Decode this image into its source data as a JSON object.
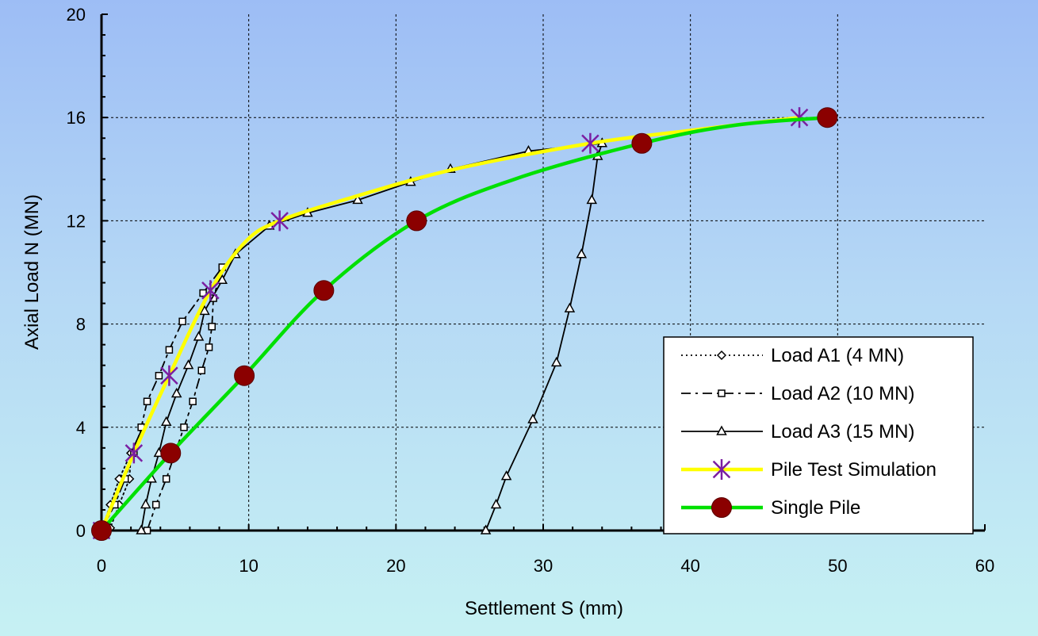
{
  "chart_data": {
    "type": "line",
    "title": "",
    "xlabel": "Settlement S (mm)",
    "ylabel": "Axial Load N (MN)",
    "xlim": [
      0,
      60
    ],
    "ylim": [
      0,
      20
    ],
    "xticks": [
      "0",
      "10",
      "20",
      "30",
      "40",
      "50",
      "60"
    ],
    "yticks": [
      "0",
      "4",
      "8",
      "12",
      "16",
      "20"
    ],
    "grid": true,
    "legend_position": "bottom-right",
    "series": [
      {
        "name": "Load A1 (4 MN)",
        "color": "#000000",
        "marker": "diamond",
        "line": "dotted",
        "points": [
          [
            0,
            0
          ],
          [
            0.6,
            1
          ],
          [
            1.2,
            2
          ],
          [
            2.0,
            3
          ],
          [
            2.8,
            4
          ],
          [
            2.0,
            3
          ],
          [
            1.9,
            2
          ],
          [
            1.2,
            1
          ],
          [
            0.6,
            0.1
          ]
        ]
      },
      {
        "name": "Load A2 (10 MN)",
        "color": "#000000",
        "marker": "square",
        "line": "dashed",
        "points": [
          [
            0,
            0
          ],
          [
            0.9,
            1
          ],
          [
            1.6,
            2
          ],
          [
            2.2,
            3
          ],
          [
            2.7,
            4
          ],
          [
            3.1,
            5
          ],
          [
            3.9,
            6
          ],
          [
            4.6,
            7
          ],
          [
            5.5,
            8.1
          ],
          [
            6.9,
            9.2
          ],
          [
            8.2,
            10.2
          ],
          [
            7.6,
            9
          ],
          [
            7.5,
            7.9
          ],
          [
            7.3,
            7.1
          ],
          [
            6.8,
            6.2
          ],
          [
            6.2,
            5
          ],
          [
            5.6,
            4
          ],
          [
            4.4,
            2
          ],
          [
            3.7,
            1
          ],
          [
            3.1,
            0
          ]
        ]
      },
      {
        "name": "Load A3 (15 MN)",
        "color": "#000000",
        "marker": "triangle",
        "line": "solid",
        "points": [
          [
            2.7,
            0
          ],
          [
            3.0,
            1
          ],
          [
            3.4,
            2
          ],
          [
            3.9,
            3
          ],
          [
            4.4,
            4.2
          ],
          [
            5.1,
            5.3
          ],
          [
            5.9,
            6.4
          ],
          [
            6.6,
            7.5
          ],
          [
            7.0,
            8.5
          ],
          [
            8.2,
            9.7
          ],
          [
            9.1,
            10.7
          ],
          [
            11.4,
            11.8
          ],
          [
            14.0,
            12.3
          ],
          [
            17.4,
            12.8
          ],
          [
            21.0,
            13.5
          ],
          [
            23.7,
            14.0
          ],
          [
            29.0,
            14.7
          ],
          [
            34.0,
            15.0
          ],
          [
            33.7,
            14.5
          ],
          [
            33.3,
            12.8
          ],
          [
            32.6,
            10.7
          ],
          [
            31.8,
            8.6
          ],
          [
            30.9,
            6.5
          ],
          [
            29.3,
            4.3
          ],
          [
            27.5,
            2.1
          ],
          [
            26.8,
            1
          ],
          [
            26.1,
            0
          ]
        ]
      },
      {
        "name": "Pile Test Simulation",
        "color": "#ffff00",
        "marker": "asterisk",
        "marker_color": "#7b1fa2",
        "line": "solid",
        "points": [
          [
            0,
            0
          ],
          [
            2.2,
            3
          ],
          [
            4.6,
            6
          ],
          [
            7.4,
            9.3
          ],
          [
            9.8,
            11.2
          ],
          [
            12.1,
            12.0
          ],
          [
            17.0,
            12.9
          ],
          [
            24.0,
            14.0
          ],
          [
            33.2,
            15.0
          ],
          [
            40.0,
            15.5
          ],
          [
            47.4,
            16.0
          ]
        ],
        "marked": [
          [
            0,
            0
          ],
          [
            2.2,
            3
          ],
          [
            4.6,
            6
          ],
          [
            7.4,
            9.3
          ],
          [
            12.1,
            12.0
          ],
          [
            33.2,
            15.0
          ],
          [
            47.4,
            16.0
          ]
        ]
      },
      {
        "name": "Single Pile",
        "color": "#00e000",
        "marker": "circle",
        "marker_color": "#8b0000",
        "line": "solid",
        "points": [
          [
            0,
            0
          ],
          [
            4.7,
            3
          ],
          [
            9.7,
            6
          ],
          [
            15.1,
            9.3
          ],
          [
            21.4,
            12.0
          ],
          [
            28.0,
            13.6
          ],
          [
            36.7,
            15.0
          ],
          [
            43.0,
            15.7
          ],
          [
            49.3,
            16.0
          ]
        ],
        "marked": [
          [
            0,
            0
          ],
          [
            4.7,
            3
          ],
          [
            9.7,
            6
          ],
          [
            15.1,
            9.3
          ],
          [
            21.4,
            12.0
          ],
          [
            36.7,
            15.0
          ],
          [
            49.3,
            16.0
          ]
        ]
      }
    ]
  }
}
